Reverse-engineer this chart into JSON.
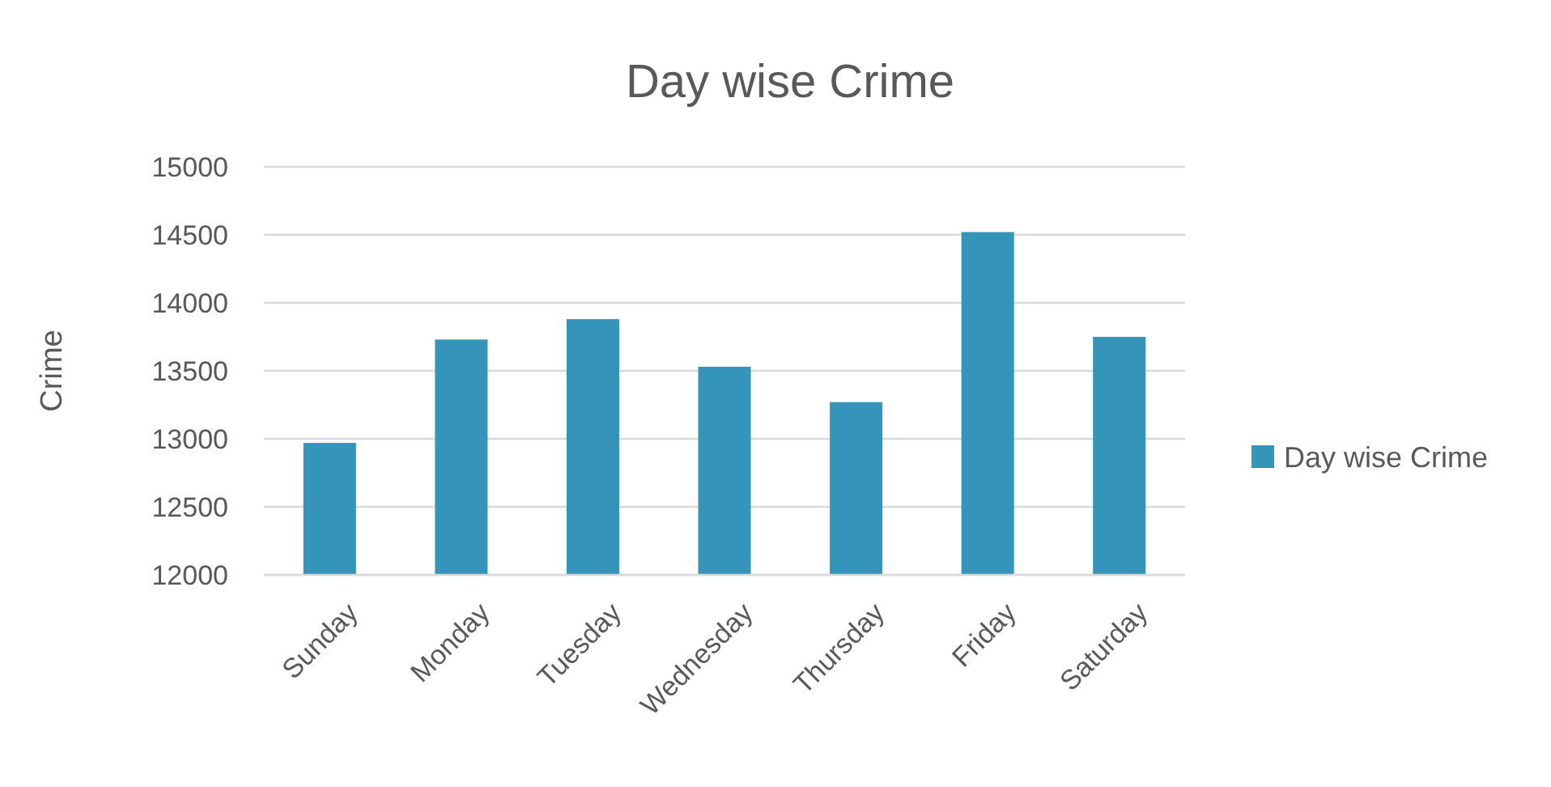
{
  "chart_data": {
    "type": "bar",
    "title": "Day wise Crime",
    "ylabel": "Crime",
    "categories": [
      "Sunday",
      "Monday",
      "Tuesday",
      "Wednesday",
      "Thursday",
      "Friday",
      "Saturday"
    ],
    "series": [
      {
        "name": "Day wise Crime",
        "color": "#3494ba",
        "values": [
          12970,
          13730,
          13880,
          13530,
          13270,
          14520,
          13750
        ]
      }
    ],
    "ylim": [
      12000,
      15000
    ],
    "yticks": [
      12000,
      12500,
      13000,
      13500,
      14000,
      14500,
      15000
    ],
    "grid": "y",
    "legend": "right"
  }
}
